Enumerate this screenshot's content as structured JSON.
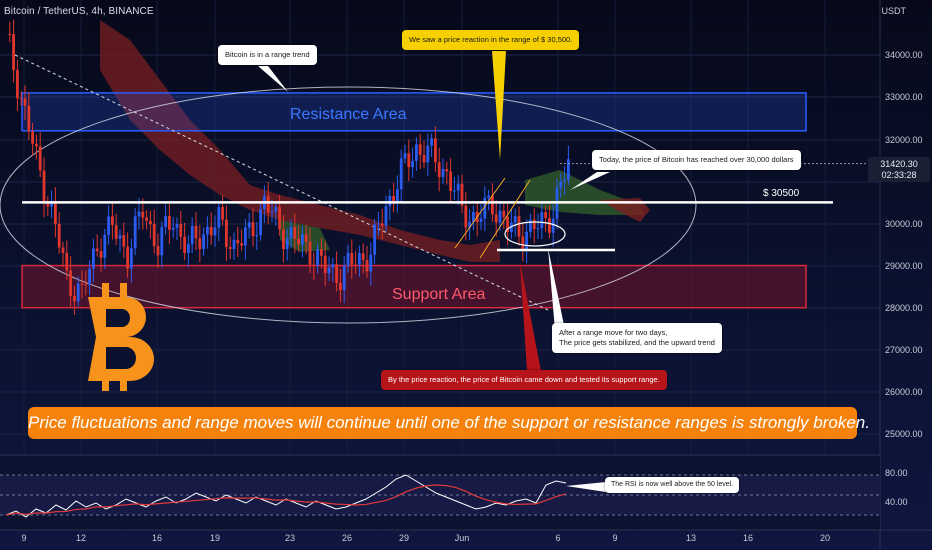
{
  "header": {
    "symbol": "Bitcoin / TetherUS, 4h, BINANCE",
    "unit": "USDT"
  },
  "colors": {
    "up": "#2b5cf0",
    "down": "#e0362c",
    "cloud_bear": "#7a1f22",
    "cloud_bull": "#2f5a2a",
    "resistance": "#2a5cff",
    "support": "#d7283a",
    "banner": "#f5820c",
    "btc_logo": "#f7931a",
    "rsi_line": "#ffffff",
    "rsi_ma": "#e23a3a"
  },
  "price_axis": {
    "labels": [
      "34000.00",
      "33000.00",
      "32000.00",
      "31420.30",
      "02:33:28",
      "30000.00",
      "29000.00",
      "28000.00",
      "27000.00",
      "26000.00",
      "25000.00"
    ]
  },
  "time_axis": {
    "labels": [
      "9",
      "12",
      "16",
      "19",
      "23",
      "26",
      "29",
      "Jun",
      "6",
      "9",
      "13",
      "16",
      "20"
    ]
  },
  "annotations": {
    "range_trend": "Bitcoin is in a range trend",
    "price_reaction": "We saw a price reaction in the range of $ 30,500.",
    "today": "Today, the price of Bitcoin has reached over 30,000 dollars",
    "after_range_line1": "After a range move for two days,",
    "after_range_line2": "The price gets stabilized, and the upward trend",
    "support_test": "By the price reaction, the price of Bitcoin came down and tested its support range.",
    "rsi_note": "The RSI is now well above the 50 level.",
    "level_label": "$ 30500",
    "resistance_label": "Resistance Area",
    "support_label": "Support Area",
    "banner": "Price fluctuations and range moves will continue until one of the support or resistance ranges is strongly broken.",
    "current_price": "31420.30",
    "countdown": "02:33:28"
  },
  "rsi_axis": {
    "labels": [
      "80.00",
      "40.00"
    ]
  },
  "chart_data": {
    "type": "candlestick",
    "title": "Bitcoin / TetherUS, 4h, BINANCE",
    "x_labels": [
      "9",
      "12",
      "16",
      "19",
      "23",
      "26",
      "29",
      "Jun",
      "6",
      "9",
      "13",
      "16",
      "20"
    ],
    "ylim": [
      24700,
      34800
    ],
    "resistance_zone": [
      32200,
      33100
    ],
    "support_zone": [
      28000,
      29000
    ],
    "key_level": 30500,
    "current_price": 31420.3,
    "close_path": [
      {
        "i": 0,
        "v": 34500
      },
      {
        "i": 4,
        "v": 33000
      },
      {
        "i": 8,
        "v": 31500
      },
      {
        "i": 12,
        "v": 30300
      },
      {
        "i": 16,
        "v": 28700
      },
      {
        "i": 20,
        "v": 28300
      },
      {
        "i": 24,
        "v": 29500
      },
      {
        "i": 28,
        "v": 29900
      },
      {
        "i": 32,
        "v": 29300
      },
      {
        "i": 36,
        "v": 30300
      },
      {
        "i": 40,
        "v": 29500
      },
      {
        "i": 44,
        "v": 30100
      },
      {
        "i": 48,
        "v": 29400
      },
      {
        "i": 52,
        "v": 29800
      },
      {
        "i": 56,
        "v": 30000
      },
      {
        "i": 60,
        "v": 29500
      },
      {
        "i": 64,
        "v": 29700
      },
      {
        "i": 68,
        "v": 30500
      },
      {
        "i": 72,
        "v": 29900
      },
      {
        "i": 76,
        "v": 29600
      },
      {
        "i": 80,
        "v": 29400
      },
      {
        "i": 84,
        "v": 28900
      },
      {
        "i": 88,
        "v": 28800
      },
      {
        "i": 92,
        "v": 29100
      },
      {
        "i": 96,
        "v": 29300
      },
      {
        "i": 100,
        "v": 30400
      },
      {
        "i": 104,
        "v": 31200
      },
      {
        "i": 108,
        "v": 31800
      },
      {
        "i": 112,
        "v": 31600
      },
      {
        "i": 116,
        "v": 31200
      },
      {
        "i": 120,
        "v": 30300
      },
      {
        "i": 124,
        "v": 30100
      },
      {
        "i": 128,
        "v": 30500
      },
      {
        "i": 132,
        "v": 29900
      },
      {
        "i": 136,
        "v": 29800
      },
      {
        "i": 140,
        "v": 29900
      },
      {
        "i": 144,
        "v": 30300
      },
      {
        "i": 148,
        "v": 31400
      }
    ],
    "rsi": {
      "ylim": [
        15,
        90
      ],
      "levels": [
        70,
        50,
        30
      ],
      "values": [
        30,
        34,
        28,
        36,
        32,
        40,
        35,
        44,
        38,
        42,
        36,
        40,
        46,
        42,
        38,
        44,
        48,
        42,
        46,
        52,
        48,
        44,
        50,
        46,
        42,
        48,
        44,
        40,
        46,
        42,
        38,
        44,
        40,
        36,
        38,
        42,
        46,
        52,
        58,
        66,
        70,
        64,
        58,
        52,
        48,
        44,
        40,
        36,
        38,
        42,
        40,
        44,
        46,
        42,
        60,
        64,
        62
      ]
    }
  }
}
